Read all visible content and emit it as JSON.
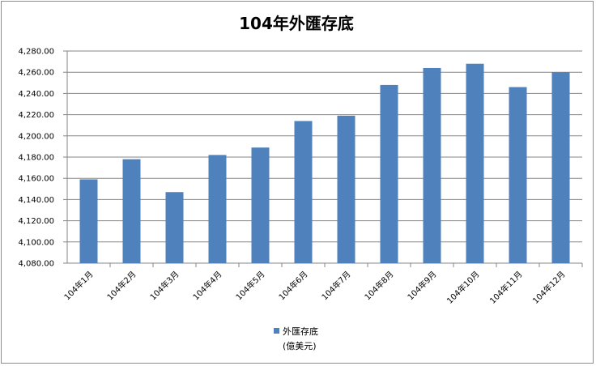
{
  "chart_data": {
    "type": "bar",
    "title": "104年外匯存底",
    "categories": [
      "104年1月",
      "104年2月",
      "104年3月",
      "104年4月",
      "104年5月",
      "104年6月",
      "104年7月",
      "104年8月",
      "104年9月",
      "104年10月",
      "104年11月",
      "104年12月"
    ],
    "series": [
      {
        "name": "外匯存底",
        "values": [
          4159,
          4178,
          4147,
          4182,
          4189,
          4214,
          4219,
          4248,
          4264,
          4268,
          4246,
          4260
        ]
      }
    ],
    "legend_unit": "(億美元)",
    "ylim": [
      4080,
      4280
    ],
    "ytick_step": 20,
    "y_tick_labels": [
      "4,080.00",
      "4,100.00",
      "4,120.00",
      "4,140.00",
      "4,160.00",
      "4,180.00",
      "4,200.00",
      "4,220.00",
      "4,240.00",
      "4,260.00",
      "4,280.00"
    ],
    "grid": true,
    "legend_position": "bottom",
    "bar_color": "#4f81bd"
  }
}
